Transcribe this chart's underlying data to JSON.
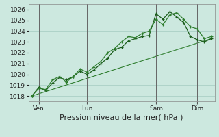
{
  "background_color": "#cce8df",
  "plot_bg_color": "#cce8df",
  "grid_color": "#aacfc5",
  "line_color_dark": "#1a5c1a",
  "line_color_mid": "#2e7d2e",
  "ylim": [
    1017.5,
    1026.5
  ],
  "yticks": [
    1018,
    1019,
    1020,
    1021,
    1022,
    1023,
    1024,
    1025,
    1026
  ],
  "xlabel": "Pression niveau de la mer( hPa )",
  "xlabel_fontsize": 8,
  "tick_fontsize": 6.5,
  "day_labels": [
    "Ven",
    "Lun",
    "Sam",
    "Dim"
  ],
  "series1_x": [
    0,
    1,
    2,
    3,
    4,
    5,
    6,
    7,
    8,
    9,
    10,
    11,
    12,
    13,
    14,
    15,
    16,
    17,
    18,
    19,
    20,
    21,
    22,
    23,
    24,
    25,
    26
  ],
  "series1_y": [
    1018.0,
    1018.8,
    1018.5,
    1019.2,
    1019.7,
    1019.5,
    1019.8,
    1020.3,
    1020.0,
    1020.4,
    1021.0,
    1021.5,
    1022.3,
    1022.5,
    1023.1,
    1023.3,
    1023.5,
    1023.6,
    1025.6,
    1025.1,
    1025.8,
    1025.3,
    1024.8,
    1023.5,
    1023.2,
    1023.0,
    1023.3
  ],
  "series2_x": [
    0,
    1,
    2,
    3,
    4,
    5,
    6,
    7,
    8,
    9,
    10,
    11,
    12,
    13,
    14,
    15,
    16,
    17,
    18,
    19,
    20,
    21,
    22,
    23,
    24,
    25,
    26
  ],
  "series2_y": [
    1018.0,
    1018.7,
    1018.6,
    1019.5,
    1019.8,
    1019.3,
    1019.8,
    1020.5,
    1020.2,
    1020.7,
    1021.2,
    1022.0,
    1022.4,
    1023.0,
    1023.5,
    1023.4,
    1023.8,
    1024.0,
    1025.1,
    1024.6,
    1025.5,
    1025.7,
    1025.1,
    1024.4,
    1024.2,
    1023.3,
    1023.5
  ],
  "trend_x": [
    0,
    26
  ],
  "trend_y": [
    1018.0,
    1023.3
  ],
  "n_points": 27,
  "xlim": [
    -0.5,
    26.5
  ]
}
